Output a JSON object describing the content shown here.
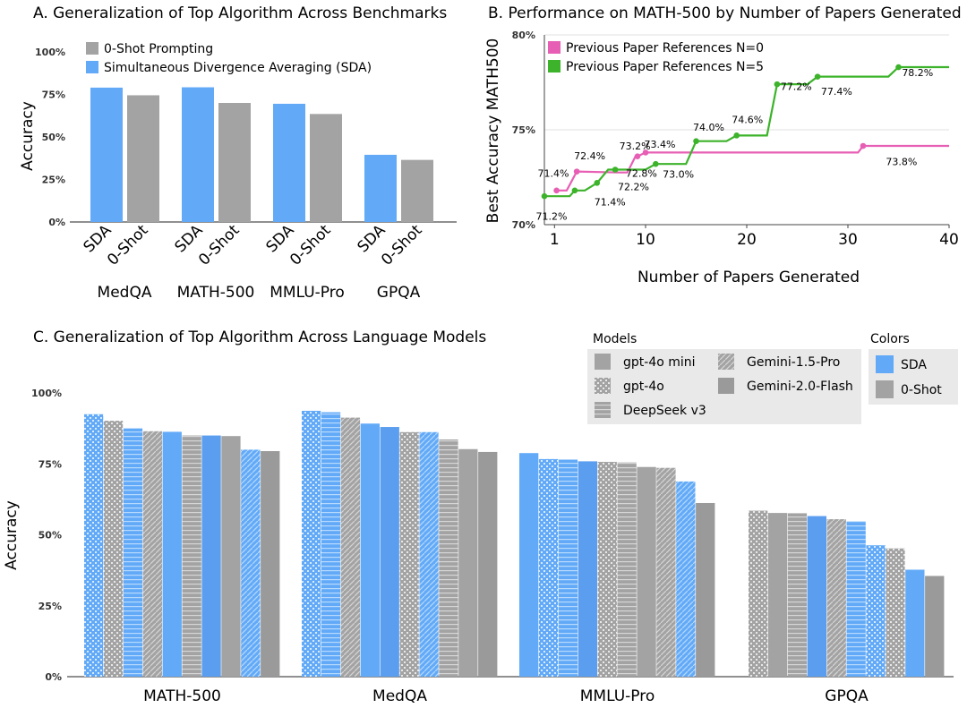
{
  "chart_data": [
    {
      "id": "A",
      "type": "bar",
      "title": "A.   Generalization of Top Algorithm Across Benchmarks",
      "ylabel": "Accuracy",
      "ylim": [
        0,
        100
      ],
      "yticks": [
        "0%",
        "25%",
        "50%",
        "75%",
        "100%"
      ],
      "categories": [
        "MedQA",
        "MATH-500",
        "MMLU-Pro",
        "GPQA"
      ],
      "bar_labels": [
        "SDA",
        "0-Shot"
      ],
      "legend_position": "top-left",
      "series": [
        {
          "name": "Simultaneous Divergence Averaging (SDA)",
          "color": "#62aaf8",
          "values": [
            79,
            79.2,
            69.5,
            39.5
          ]
        },
        {
          "name": "0-Shot Prompting",
          "color": "#a3a3a3",
          "values": [
            74.5,
            70,
            63.5,
            36.5
          ]
        }
      ]
    },
    {
      "id": "B",
      "type": "line",
      "title": "B.   Performance on MATH-500 by Number of Papers Generated",
      "xlabel": "Number of Papers Generated",
      "ylabel": "Best Accuracy MATH500",
      "xlim": [
        0,
        40
      ],
      "ylim": [
        70,
        80
      ],
      "xticks": [
        "1",
        "10",
        "20",
        "30",
        "40"
      ],
      "yticks": [
        "70%",
        "75%",
        "80%"
      ],
      "legend_position": "top-left",
      "series": [
        {
          "name": "Previous Paper References N=0",
          "color": "#e75fb4",
          "x": [
            1.2,
            2,
            2.2,
            3.2,
            7.3,
            8.2,
            9,
            9.2,
            10,
            31,
            31.5,
            40
          ],
          "y": [
            71.8,
            71.8,
            71.8,
            72.8,
            72.75,
            72.75,
            73.6,
            73.6,
            73.8,
            73.8,
            74.15,
            74.15
          ],
          "markers": [
            [
              1.2,
              71.8
            ],
            [
              3.2,
              72.8
            ],
            [
              9.2,
              73.6
            ],
            [
              10,
              73.8
            ],
            [
              31.5,
              74.15
            ]
          ],
          "annotations": [
            {
              "x": 2,
              "y": 72.4,
              "text": "72.4%"
            },
            {
              "x": 7,
              "y": 73.2,
              "text": "73.2%"
            },
            {
              "x": 10,
              "y": 73.4,
              "text": "73.4%"
            },
            {
              "x": 33,
              "y": 73.8,
              "text": "73.8%"
            }
          ]
        },
        {
          "name": "Previous Paper References N=5",
          "color": "#3cb32a",
          "x": [
            0,
            2.5,
            3,
            4,
            5.2,
            6.3,
            7,
            10,
            11,
            14,
            15,
            18,
            19,
            22,
            23,
            26,
            27,
            34,
            35,
            40
          ],
          "y": [
            71.5,
            71.5,
            71.8,
            71.8,
            72.2,
            72.9,
            72.9,
            72.9,
            73.2,
            73.2,
            74.4,
            74.4,
            74.7,
            74.7,
            77.4,
            77.4,
            77.8,
            77.8,
            78.3,
            78.3
          ],
          "markers": [
            [
              0,
              71.5
            ],
            [
              3,
              71.8
            ],
            [
              5.2,
              72.2
            ],
            [
              7,
              72.9
            ],
            [
              11,
              73.2
            ],
            [
              15,
              74.4
            ],
            [
              19,
              74.7
            ],
            [
              23,
              77.4
            ],
            [
              27,
              77.8
            ],
            [
              35,
              78.3
            ]
          ],
          "annotations": [
            {
              "x": 0,
              "y": 71.4,
              "text": "71.4%"
            },
            {
              "x": 0,
              "y": 71.2,
              "text": "71.2%"
            },
            {
              "x": 4,
              "y": 71.4,
              "text": "71.4%"
            },
            {
              "x": 6.5,
              "y": 72.2,
              "text": "72.2%"
            },
            {
              "x": 8,
              "y": 72.8,
              "text": "72.8%"
            },
            {
              "x": 12,
              "y": 73.0,
              "text": "73.0%"
            },
            {
              "x": 15,
              "y": 74.0,
              "text": "74.0%"
            },
            {
              "x": 19,
              "y": 74.6,
              "text": "74.6%"
            },
            {
              "x": 24,
              "y": 77.2,
              "text": "77.2%"
            },
            {
              "x": 28,
              "y": 77.4,
              "text": "77.4%"
            },
            {
              "x": 36,
              "y": 78.2,
              "text": "78.2%"
            }
          ]
        }
      ]
    },
    {
      "id": "C",
      "type": "bar",
      "title": "C.   Generalization of Top Algorithm Across Language Models",
      "ylabel": "Accuracy",
      "ylim": [
        0,
        100
      ],
      "yticks": [
        "0%",
        "25%",
        "50%",
        "75%",
        "100%"
      ],
      "categories": [
        "MATH-500",
        "MedQA",
        "MMLU-Pro",
        "GPQA"
      ],
      "legend_models_title": "Models",
      "legend_models": [
        {
          "name": "gpt-4o mini",
          "pattern": "solid"
        },
        {
          "name": "gpt-4o",
          "pattern": "checker"
        },
        {
          "name": "DeepSeek v3",
          "pattern": "hlines"
        },
        {
          "name": "Gemini-1.5-Pro",
          "pattern": "diag"
        },
        {
          "name": "Gemini-2.0-Flash",
          "pattern": "grad"
        }
      ],
      "legend_colors_title": "Colors",
      "legend_colors": [
        {
          "name": "SDA",
          "color": "#62aaf8"
        },
        {
          "name": "0-Shot",
          "color": "#a3a3a3"
        }
      ],
      "groups": [
        {
          "category": "MATH-500",
          "bars": [
            {
              "value": 92.5,
              "method": "SDA",
              "model": "gpt-4o"
            },
            {
              "value": 90.2,
              "method": "0-Shot",
              "model": "gpt-4o"
            },
            {
              "value": 87.5,
              "method": "SDA",
              "model": "DeepSeek v3"
            },
            {
              "value": 86.5,
              "method": "0-Shot",
              "model": "Gemini-1.5-Pro"
            },
            {
              "value": 86.3,
              "method": "SDA",
              "model": "gpt-4o mini"
            },
            {
              "value": 85,
              "method": "0-Shot",
              "model": "DeepSeek v3"
            },
            {
              "value": 85,
              "method": "SDA",
              "model": "Gemini-2.0-Flash"
            },
            {
              "value": 84.8,
              "method": "0-Shot",
              "model": "gpt-4o mini"
            },
            {
              "value": 80,
              "method": "SDA",
              "model": "Gemini-1.5-Pro"
            },
            {
              "value": 79.5,
              "method": "0-Shot",
              "model": "Gemini-2.0-Flash"
            }
          ]
        },
        {
          "category": "MedQA",
          "bars": [
            {
              "value": 93.7,
              "method": "SDA",
              "model": "gpt-4o"
            },
            {
              "value": 93.2,
              "method": "SDA",
              "model": "DeepSeek v3"
            },
            {
              "value": 91.3,
              "method": "0-Shot",
              "model": "Gemini-1.5-Pro"
            },
            {
              "value": 89.2,
              "method": "SDA",
              "model": "gpt-4o mini"
            },
            {
              "value": 88,
              "method": "SDA",
              "model": "Gemini-2.0-Flash"
            },
            {
              "value": 86.2,
              "method": "0-Shot",
              "model": "gpt-4o"
            },
            {
              "value": 86.2,
              "method": "SDA",
              "model": "Gemini-1.5-Pro"
            },
            {
              "value": 83.6,
              "method": "0-Shot",
              "model": "DeepSeek v3"
            },
            {
              "value": 80.2,
              "method": "0-Shot",
              "model": "gpt-4o mini"
            },
            {
              "value": 79.2,
              "method": "0-Shot",
              "model": "Gemini-2.0-Flash"
            }
          ]
        },
        {
          "category": "MMLU-Pro",
          "bars": [
            {
              "value": 78.8,
              "method": "SDA",
              "model": "gpt-4o mini"
            },
            {
              "value": 76.7,
              "method": "SDA",
              "model": "gpt-4o"
            },
            {
              "value": 76.5,
              "method": "SDA",
              "model": "DeepSeek v3"
            },
            {
              "value": 75.9,
              "method": "SDA",
              "model": "Gemini-2.0-Flash"
            },
            {
              "value": 75.7,
              "method": "0-Shot",
              "model": "gpt-4o"
            },
            {
              "value": 75.5,
              "method": "0-Shot",
              "model": "DeepSeek v3"
            },
            {
              "value": 73.9,
              "method": "0-Shot",
              "model": "gpt-4o mini"
            },
            {
              "value": 73.6,
              "method": "0-Shot",
              "model": "Gemini-1.5-Pro"
            },
            {
              "value": 68.8,
              "method": "SDA",
              "model": "Gemini-1.5-Pro"
            },
            {
              "value": 61.2,
              "method": "0-Shot",
              "model": "Gemini-2.0-Flash"
            }
          ]
        },
        {
          "category": "GPQA",
          "bars": [
            {
              "value": 58.5,
              "method": "0-Shot",
              "model": "gpt-4o"
            },
            {
              "value": 57.7,
              "method": "0-Shot",
              "model": "gpt-4o mini"
            },
            {
              "value": 57.6,
              "method": "0-Shot",
              "model": "DeepSeek v3"
            },
            {
              "value": 56.6,
              "method": "SDA",
              "model": "Gemini-2.0-Flash"
            },
            {
              "value": 55.5,
              "method": "0-Shot",
              "model": "Gemini-1.5-Pro"
            },
            {
              "value": 54.8,
              "method": "SDA",
              "model": "DeepSeek v3"
            },
            {
              "value": 46.3,
              "method": "SDA",
              "model": "gpt-4o"
            },
            {
              "value": 45.2,
              "method": "0-Shot",
              "model": "gpt-4o"
            },
            {
              "value": 37.7,
              "method": "SDA",
              "model": "gpt-4o mini"
            },
            {
              "value": 35.5,
              "method": "0-Shot",
              "model": "Gemini-2.0-Flash"
            }
          ]
        }
      ]
    }
  ]
}
